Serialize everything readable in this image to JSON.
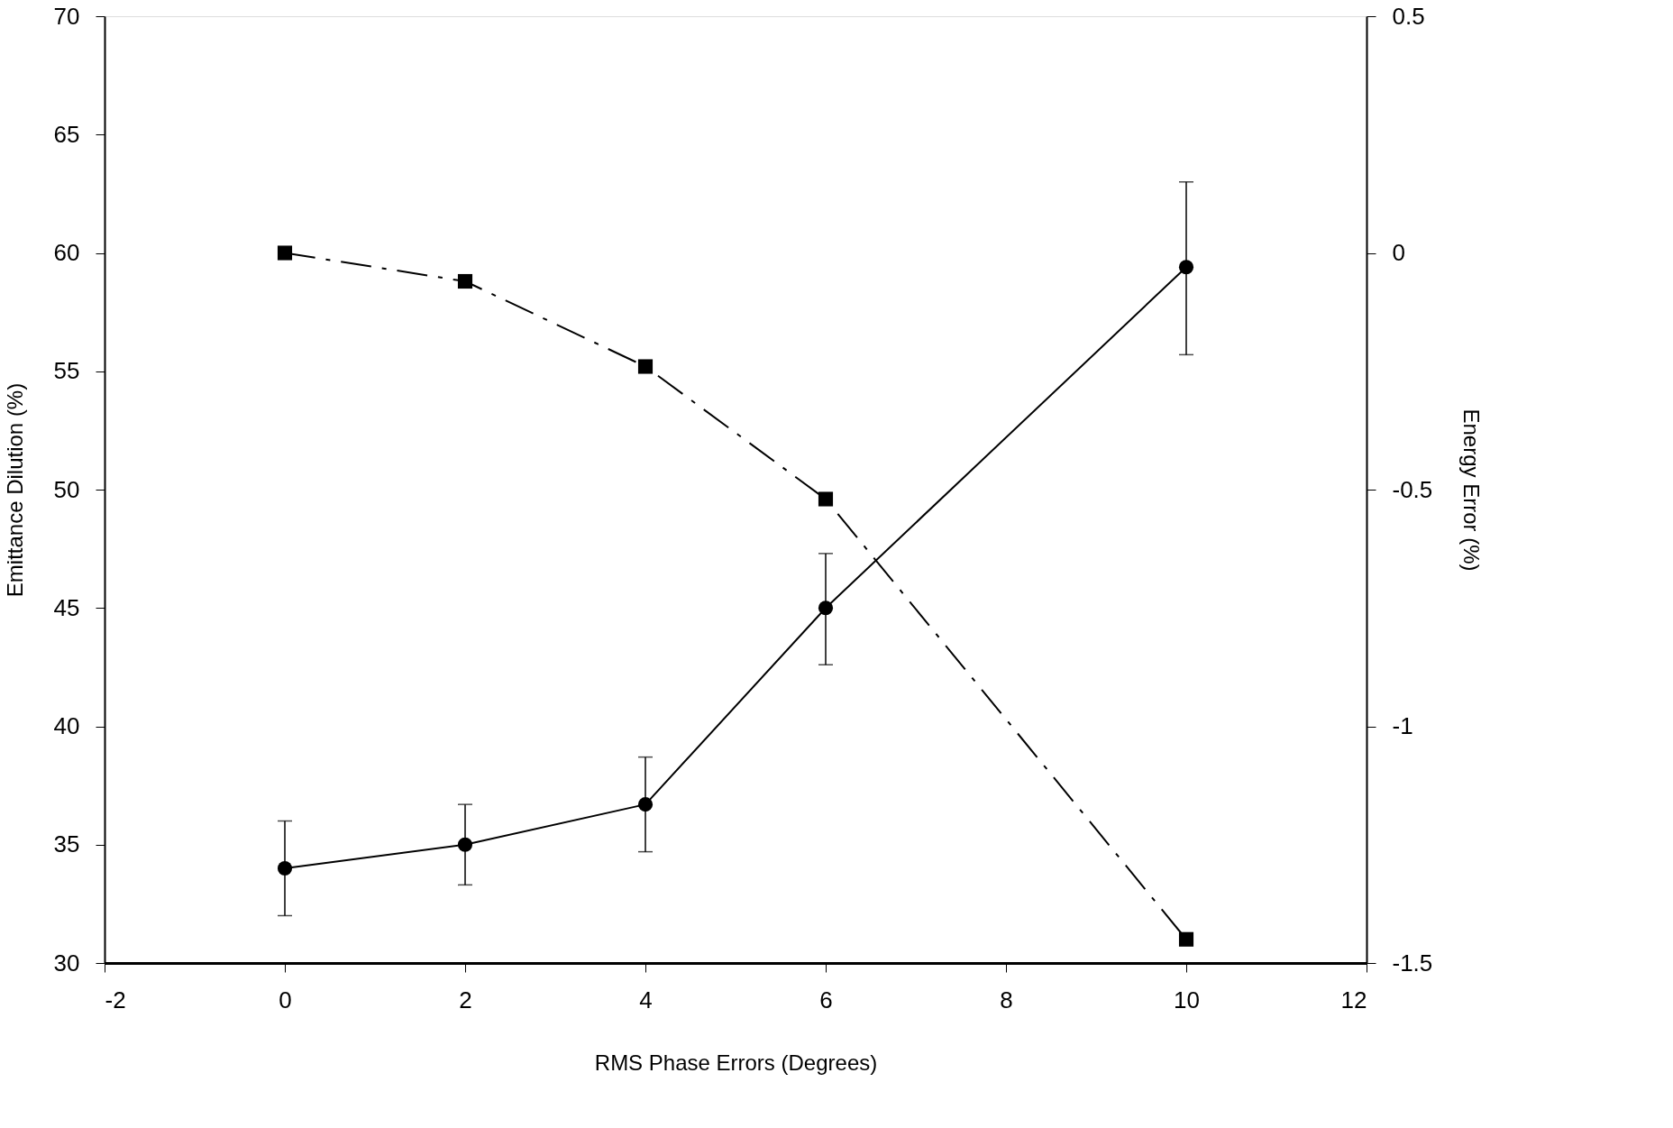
{
  "chart_data": {
    "type": "line",
    "xlabel": "RMS Phase Errors (Degrees)",
    "ylabel": "Emittance Dilution (%)",
    "y2label": "Energy Error (%)",
    "xlim": [
      -2,
      12
    ],
    "xticks": [
      -2,
      0,
      2,
      4,
      6,
      8,
      10,
      12
    ],
    "ylim": [
      30,
      70
    ],
    "yticks": [
      30,
      35,
      40,
      45,
      50,
      55,
      60,
      65,
      70
    ],
    "y2lim": [
      -1.5,
      0.5
    ],
    "y2ticks": [
      -1.5,
      -1,
      -0.5,
      0,
      0.5
    ],
    "grid": false,
    "series": [
      {
        "x": [
          0,
          2,
          4,
          6,
          10
        ],
        "values": [
          34.0,
          35.0,
          36.7,
          45.0,
          59.4
        ],
        "color": "#000000",
        "marker": "circle",
        "line_style": "solid",
        "errors": [
          [
            32.0,
            36.0
          ],
          [
            33.3,
            36.7
          ],
          [
            34.7,
            38.7
          ],
          [
            42.6,
            47.3
          ],
          [
            55.7,
            63.0
          ]
        ]
      },
      {
        "x": [
          0,
          2,
          4,
          6,
          10
        ],
        "values": [
          0,
          -0.06,
          -0.24,
          -0.52,
          -1.45
        ],
        "color": "#000000",
        "marker": "square",
        "line_style": "dashed",
        "axis": "y2"
      }
    ]
  }
}
